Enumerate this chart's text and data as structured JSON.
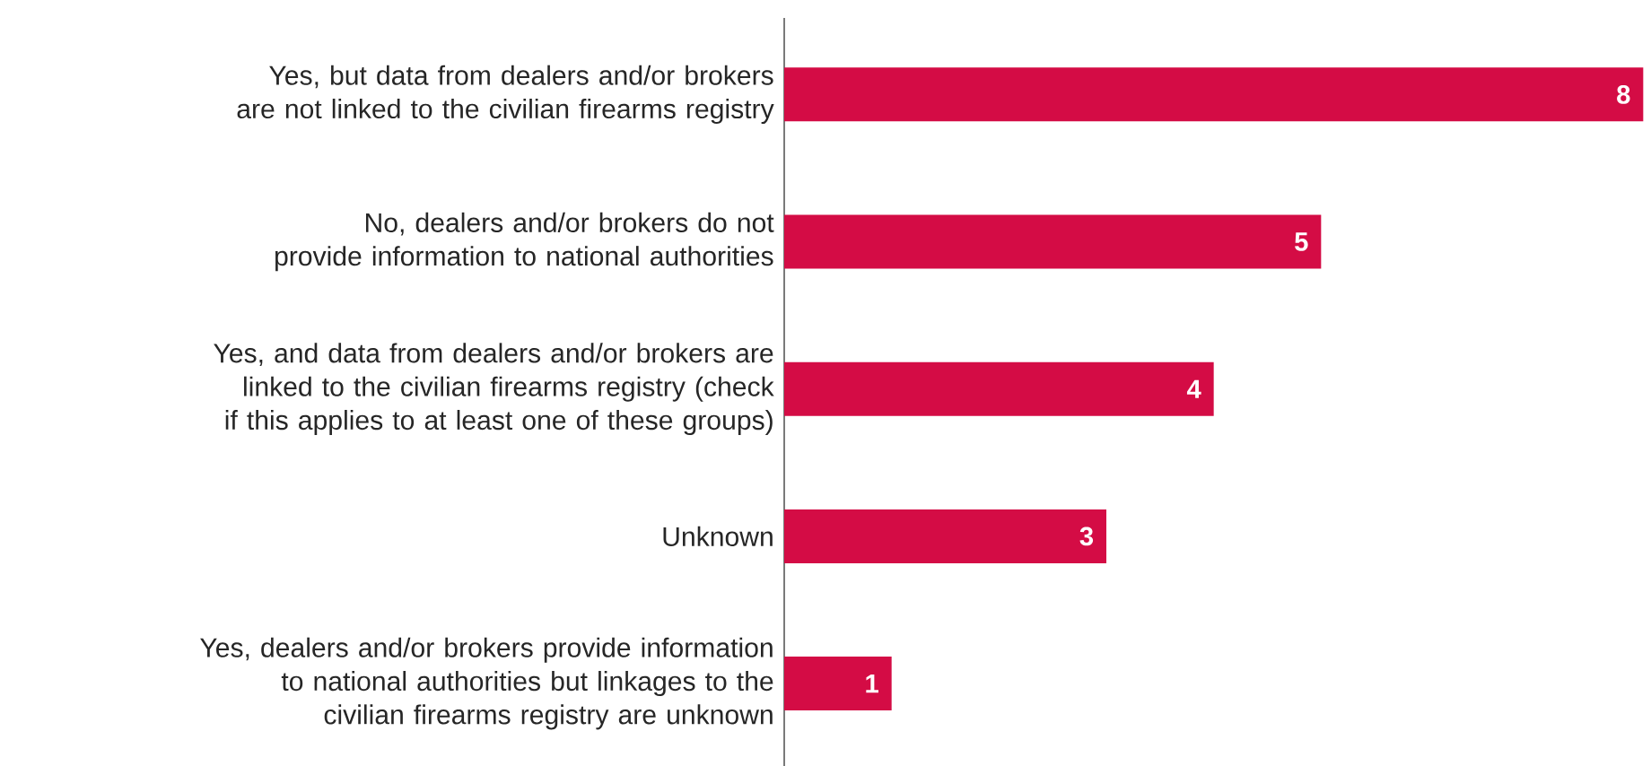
{
  "chart_data": {
    "type": "bar",
    "orientation": "horizontal",
    "categories": [
      "Yes, but data from dealers and/or brokers are not linked to the civilian firearms registry",
      "No, dealers and/or brokers do not provide information to national authorities",
      "Yes, and data from dealers and/or brokers are linked to the civilian firearms registry (check if this applies to at least one of these groups)",
      "Unknown",
      "Yes, dealers and/or brokers provide information to national authorities but linkages to the civilian firearms registry are unknown"
    ],
    "values": [
      8,
      5,
      4,
      3,
      1
    ],
    "color": "#d40c45",
    "data_labels": true
  }
}
